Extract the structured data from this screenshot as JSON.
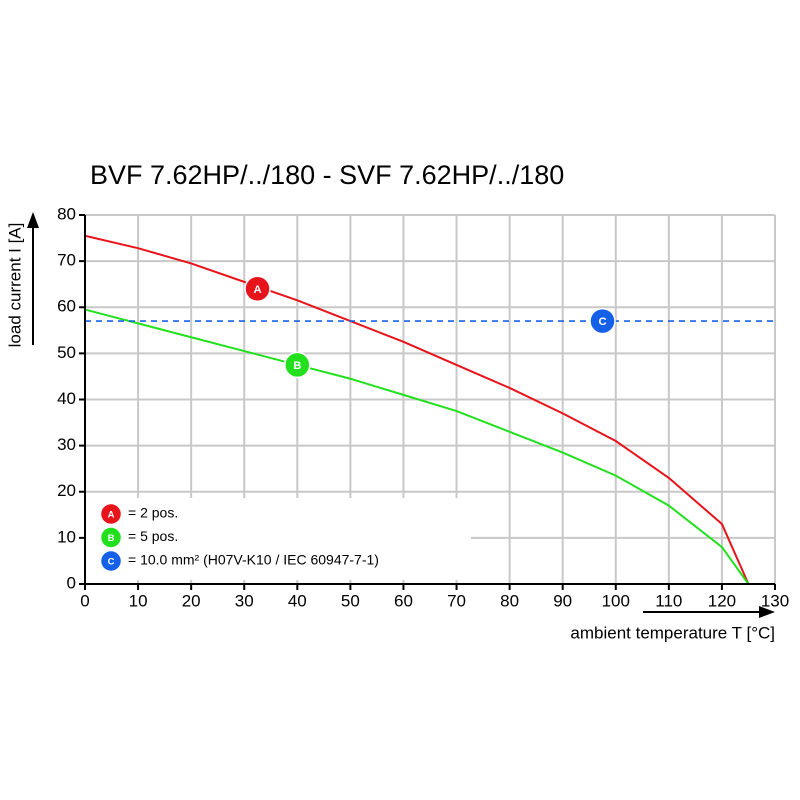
{
  "chart_data": {
    "type": "line",
    "title": "BVF 7.62HP/../180 - SVF 7.62HP/../180",
    "x_label": "ambient temperature T [°C]",
    "y_label": "load current I [A]",
    "xlim": [
      0,
      130
    ],
    "xticks": [
      0,
      10,
      20,
      30,
      40,
      50,
      60,
      70,
      80,
      90,
      100,
      110,
      120,
      130
    ],
    "ylim": [
      0,
      80
    ],
    "yticks": [
      0,
      10,
      20,
      30,
      40,
      50,
      60,
      70,
      80
    ],
    "grid": true,
    "series": [
      {
        "name": "= 2 pos.",
        "color": "#e8141b",
        "dashed": false,
        "x": [
          0,
          10,
          20,
          30,
          40,
          50,
          60,
          70,
          80,
          90,
          100,
          110,
          120,
          125
        ],
        "values": [
          75.5,
          72.8,
          69.5,
          65.5,
          61.5,
          57,
          52.5,
          47.5,
          42.5,
          37,
          31,
          23,
          13,
          0
        ],
        "marker": {
          "label": "A",
          "x": 32.5,
          "y": 64
        }
      },
      {
        "name": "= 5 pos.",
        "color": "#22e01e",
        "dashed": false,
        "x": [
          0,
          10,
          20,
          30,
          40,
          50,
          60,
          70,
          80,
          90,
          100,
          110,
          120,
          125
        ],
        "values": [
          59.5,
          56.5,
          53.5,
          50.5,
          47.5,
          44.5,
          41,
          37.5,
          33,
          28.5,
          23.5,
          17,
          8,
          0
        ],
        "marker": {
          "label": "B",
          "x": 40,
          "y": 47.5
        }
      },
      {
        "name": "= 10.0 mm² (H07V-K10 / IEC 60947-7-1)",
        "color": "#1560e8",
        "dashed": true,
        "x": [
          0,
          130
        ],
        "values": [
          57,
          57
        ],
        "marker": {
          "label": "C",
          "x": 97.5,
          "y": 57
        }
      }
    ]
  }
}
